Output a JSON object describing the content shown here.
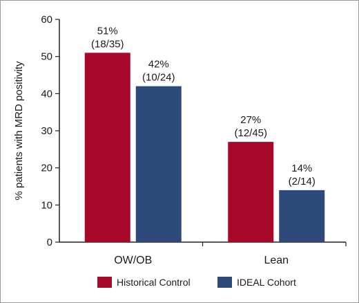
{
  "chart_data": {
    "type": "bar",
    "title": "",
    "xlabel": "",
    "ylabel": "% patients with MRD positivity",
    "ylim": [
      0,
      60
    ],
    "yticks": [
      0,
      10,
      20,
      30,
      40,
      50,
      60
    ],
    "grid": false,
    "legend_position": "bottom",
    "categories": [
      "OW/OB",
      "Lean"
    ],
    "series": [
      {
        "name": "Historical Control",
        "color": "#a8082a",
        "values": [
          51,
          27
        ],
        "labels": [
          {
            "pct": "51%",
            "frac": "(18/35)"
          },
          {
            "pct": "27%",
            "frac": "(12/45)"
          }
        ]
      },
      {
        "name": "IDEAL Cohort",
        "color": "#2d4a7a",
        "values": [
          42,
          14
        ],
        "labels": [
          {
            "pct": "42%",
            "frac": "(10/24)"
          },
          {
            "pct": "14%",
            "frac": "(2/14)"
          }
        ]
      }
    ]
  }
}
